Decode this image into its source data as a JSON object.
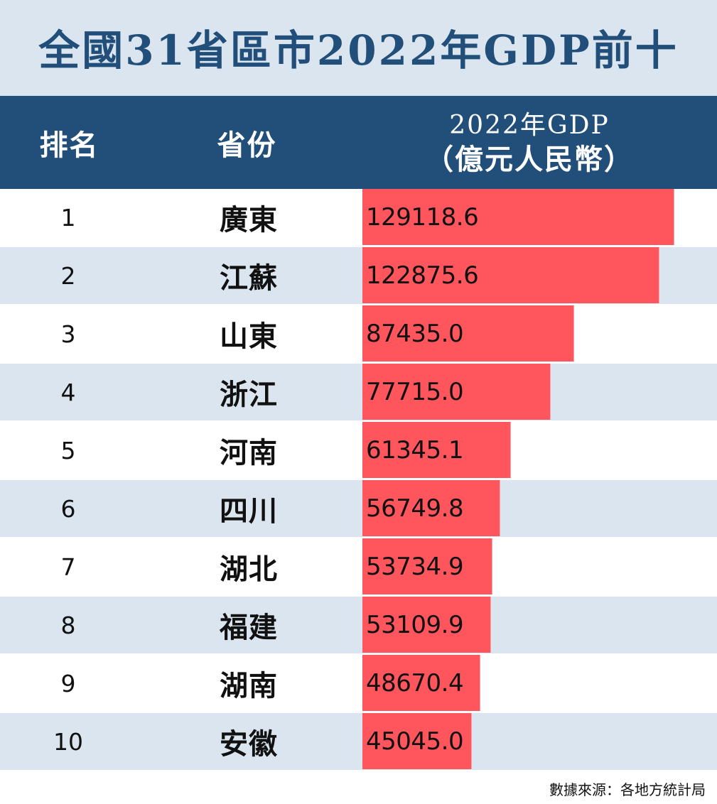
{
  "title": "全國31省區市2022年GDP前十",
  "header": {
    "rank": "排名",
    "province": "省份",
    "gdp_line1": "2022年GDP",
    "gdp_line2": "（億元人民幣）"
  },
  "colors": {
    "title_band_bg": "#dbe5f0",
    "header_bg": "#214f79",
    "bar": "#ff565d",
    "alt_row": "#dbe5f0"
  },
  "rows": [
    {
      "rank": "1",
      "province": "廣東",
      "gdp": "129118.6"
    },
    {
      "rank": "2",
      "province": "江蘇",
      "gdp": "122875.6"
    },
    {
      "rank": "3",
      "province": "山東",
      "gdp": "87435.0"
    },
    {
      "rank": "4",
      "province": "浙江",
      "gdp": "77715.0"
    },
    {
      "rank": "5",
      "province": "河南",
      "gdp": "61345.1"
    },
    {
      "rank": "6",
      "province": "四川",
      "gdp": "56749.8"
    },
    {
      "rank": "7",
      "province": "湖北",
      "gdp": "53734.9"
    },
    {
      "rank": "8",
      "province": "福建",
      "gdp": "53109.9"
    },
    {
      "rank": "9",
      "province": "湖南",
      "gdp": "48670.4"
    },
    {
      "rank": "10",
      "province": "安徽",
      "gdp": "45045.0"
    }
  ],
  "source": "數據來源：各地方統計局",
  "chart_data": {
    "type": "bar",
    "orientation": "horizontal",
    "title": "全國31省區市2022年GDP前十",
    "xlabel": "",
    "ylabel": "2022年GDP（億元人民幣）",
    "categories": [
      "廣東",
      "江蘇",
      "山東",
      "浙江",
      "河南",
      "四川",
      "湖北",
      "福建",
      "湖南",
      "安徽"
    ],
    "ranks": [
      1,
      2,
      3,
      4,
      5,
      6,
      7,
      8,
      9,
      10
    ],
    "values": [
      129118.6,
      122875.6,
      87435.0,
      77715.0,
      61345.1,
      56749.8,
      53734.9,
      53109.9,
      48670.4,
      45045.0
    ],
    "units": "億元人民幣",
    "grid": false,
    "legend": null,
    "source": "數據來源：各地方統計局"
  }
}
